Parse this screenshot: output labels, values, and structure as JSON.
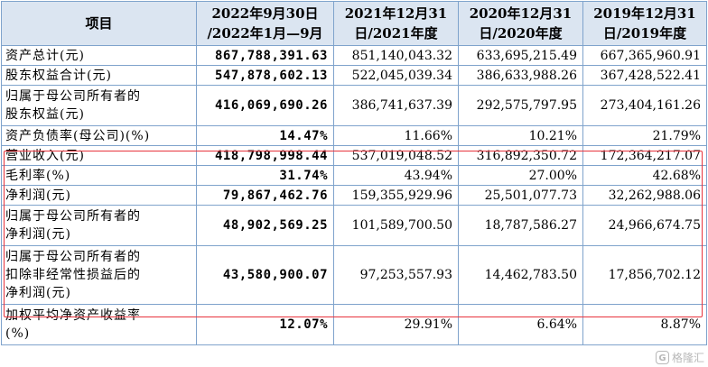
{
  "header": {
    "item": "项目",
    "col1": [
      "2022年9月30日",
      "/2022年1月—9月"
    ],
    "col2": [
      "2021年12月31",
      "日/2021年度"
    ],
    "col3": [
      "2020年12月31",
      "日/2020年度"
    ],
    "col4": [
      "2019年12月31",
      "日/2019年度"
    ]
  },
  "rows": [
    {
      "label": [
        "资产总计(元)"
      ],
      "values": [
        "867,788,391.63",
        "851,140,043.32",
        "633,695,215.49",
        "667,365,960.91"
      ]
    },
    {
      "label": [
        "股东权益合计(元)"
      ],
      "values": [
        "547,878,602.13",
        "522,045,039.34",
        "386,633,988.26",
        "367,428,522.41"
      ]
    },
    {
      "label": [
        "归属于母公司所有者的",
        "股东权益(元)"
      ],
      "values": [
        "416,069,690.26",
        "386,741,637.39",
        "292,575,797.95",
        "273,404,161.26"
      ]
    },
    {
      "label": [
        "资产负债率(母公司)(%)"
      ],
      "values": [
        "14.47%",
        "11.66%",
        "10.21%",
        "21.79%"
      ]
    },
    {
      "label": [
        "营业收入(元)"
      ],
      "values": [
        "418,798,998.44",
        "537,019,048.52",
        "316,892,350.72",
        "172,364,217.07"
      ]
    },
    {
      "label": [
        "毛利率(%)"
      ],
      "values": [
        "31.74%",
        "43.94%",
        "27.00%",
        "42.68%"
      ]
    },
    {
      "label": [
        "净利润(元)"
      ],
      "values": [
        "79,867,462.76",
        "159,355,929.96",
        "25,501,077.73",
        "32,262,988.06"
      ]
    },
    {
      "label": [
        "归属于母公司所有者的",
        "净利润(元)"
      ],
      "values": [
        "48,902,569.25",
        "101,589,700.50",
        "18,787,586.27",
        "24,966,674.75"
      ]
    },
    {
      "label": [
        "归属于母公司所有者的",
        "扣除非经常性损益后的",
        "净利润(元)"
      ],
      "values": [
        "43,580,900.07",
        "97,253,557.93",
        "14,462,783.50",
        "17,856,702.12"
      ]
    },
    {
      "label": [
        "加权平均净资产收益率",
        "(%)"
      ],
      "values": [
        "12.07%",
        "29.91%",
        "6.64%",
        "8.87%"
      ]
    }
  ],
  "watermark": {
    "logo": "G",
    "text": "格隆汇"
  },
  "colors": {
    "header_bg": "#dbe5f1",
    "border": "#7fa3cc",
    "highlight": "#e8333c"
  }
}
